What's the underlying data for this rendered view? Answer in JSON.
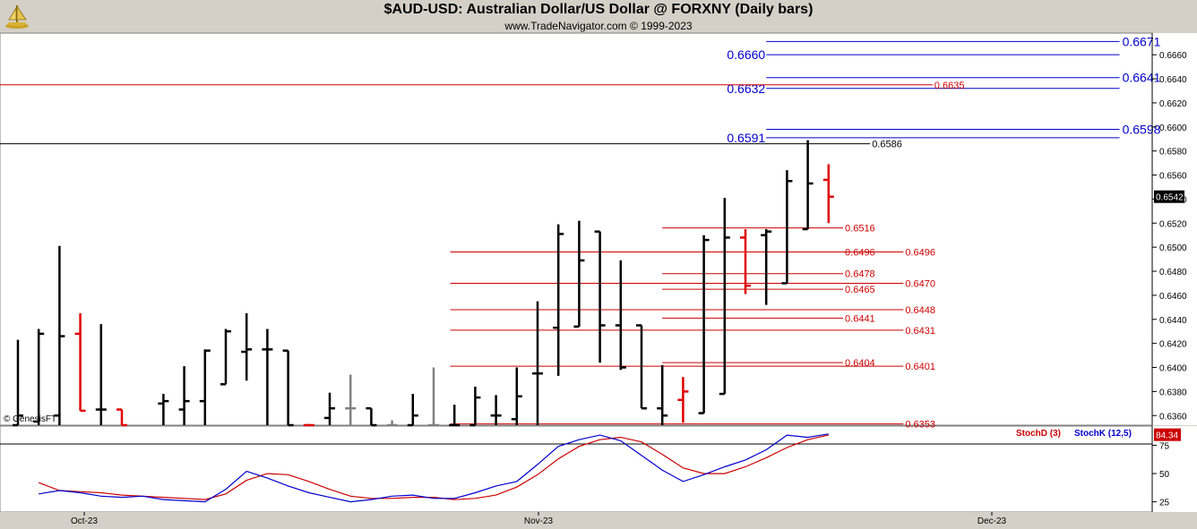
{
  "header": {
    "title": "$AUD-USD:  Australian Dollar/US Dollar @ FORXNY  (Daily bars)",
    "subtitle": "www.TradeNavigator.com © 1999-2023"
  },
  "footer": {
    "copyright": "© GenesisFT"
  },
  "colors": {
    "up_bar": "#000000",
    "down_bar": "#e00000",
    "gray_bar": "#808080",
    "blue_level": "#0000cc",
    "red_level": "#cc0000",
    "stochD": "#cc0000",
    "stochK": "#0000cc"
  },
  "chart_data": [
    {
      "type": "ohlc",
      "title": "$AUD-USD:  Australian Dollar/US Dollar @ FORXNY  (Daily bars)",
      "ylim": [
        0.6352,
        0.6678
      ],
      "y_ticks": [
        "0.6660",
        "0.6640",
        "0.6620",
        "0.6600",
        "0.6580",
        "0.6560",
        "0.6540",
        "0.6520",
        "0.6500",
        "0.6480",
        "0.6460",
        "0.6440",
        "0.6420",
        "0.6400",
        "0.6380",
        "0.6360"
      ],
      "x_labels": [
        "Oct-23",
        "Nov-23",
        "Dec-23"
      ],
      "last_price": "0.6542",
      "bars": [
        {
          "i": 0,
          "o": 0.6352,
          "h": 0.6423,
          "l": 0.6352,
          "c": 0.636,
          "k": "up"
        },
        {
          "i": 1,
          "o": 0.6355,
          "h": 0.6432,
          "l": 0.6352,
          "c": 0.6428,
          "k": "up"
        },
        {
          "i": 2,
          "o": 0.636,
          "h": 0.6501,
          "l": 0.6352,
          "c": 0.6426,
          "k": "up"
        },
        {
          "i": 3,
          "o": 0.6428,
          "h": 0.6445,
          "l": 0.6364,
          "c": 0.6364,
          "k": "down"
        },
        {
          "i": 4,
          "o": 0.6365,
          "h": 0.6436,
          "l": 0.6352,
          "c": 0.6365,
          "k": "up"
        },
        {
          "i": 5,
          "o": 0.6365,
          "h": 0.6365,
          "l": 0.6352,
          "c": 0.6352,
          "k": "down"
        },
        {
          "i": 7,
          "o": 0.637,
          "h": 0.6378,
          "l": 0.6352,
          "c": 0.6372,
          "k": "up"
        },
        {
          "i": 8,
          "o": 0.6365,
          "h": 0.6401,
          "l": 0.6352,
          "c": 0.6372,
          "k": "up"
        },
        {
          "i": 9,
          "o": 0.6372,
          "h": 0.6415,
          "l": 0.6352,
          "c": 0.6414,
          "k": "up"
        },
        {
          "i": 10,
          "o": 0.6386,
          "h": 0.6432,
          "l": 0.6386,
          "c": 0.643,
          "k": "up"
        },
        {
          "i": 11,
          "o": 0.6413,
          "h": 0.6445,
          "l": 0.6389,
          "c": 0.6415,
          "k": "up"
        },
        {
          "i": 12,
          "o": 0.6415,
          "h": 0.6432,
          "l": 0.6352,
          "c": 0.6415,
          "k": "up"
        },
        {
          "i": 13,
          "o": 0.6414,
          "h": 0.6414,
          "l": 0.6352,
          "c": 0.6352,
          "k": "up"
        },
        {
          "i": 14,
          "o": 0.6352,
          "h": 0.6353,
          "l": 0.6352,
          "c": 0.6352,
          "k": "down"
        },
        {
          "i": 15,
          "o": 0.6358,
          "h": 0.6379,
          "l": 0.6352,
          "c": 0.6366,
          "k": "up"
        },
        {
          "i": 16,
          "o": 0.6366,
          "h": 0.6394,
          "l": 0.6352,
          "c": 0.6366,
          "k": "gray"
        },
        {
          "i": 17,
          "o": 0.6366,
          "h": 0.6366,
          "l": 0.6352,
          "c": 0.6352,
          "k": "up"
        },
        {
          "i": 18,
          "o": 0.6352,
          "h": 0.6356,
          "l": 0.6352,
          "c": 0.6352,
          "k": "gray"
        },
        {
          "i": 19,
          "o": 0.6352,
          "h": 0.6378,
          "l": 0.6352,
          "c": 0.636,
          "k": "up"
        },
        {
          "i": 20,
          "o": 0.6352,
          "h": 0.64,
          "l": 0.6352,
          "c": 0.6352,
          "k": "gray"
        },
        {
          "i": 21,
          "o": 0.6352,
          "h": 0.6369,
          "l": 0.6352,
          "c": 0.6352,
          "k": "up"
        },
        {
          "i": 22,
          "o": 0.6352,
          "h": 0.6384,
          "l": 0.6352,
          "c": 0.6375,
          "k": "up"
        },
        {
          "i": 23,
          "o": 0.636,
          "h": 0.6377,
          "l": 0.6352,
          "c": 0.636,
          "k": "up"
        },
        {
          "i": 24,
          "o": 0.6357,
          "h": 0.64,
          "l": 0.6352,
          "c": 0.6376,
          "k": "up"
        },
        {
          "i": 25,
          "o": 0.6395,
          "h": 0.6455,
          "l": 0.6352,
          "c": 0.6395,
          "k": "up"
        },
        {
          "i": 26,
          "o": 0.6433,
          "h": 0.6519,
          "l": 0.6393,
          "c": 0.6511,
          "k": "up"
        },
        {
          "i": 27,
          "o": 0.6434,
          "h": 0.6522,
          "l": 0.6434,
          "c": 0.6489,
          "k": "up"
        },
        {
          "i": 28,
          "o": 0.6513,
          "h": 0.6513,
          "l": 0.6404,
          "c": 0.6435,
          "k": "up"
        },
        {
          "i": 29,
          "o": 0.6435,
          "h": 0.6489,
          "l": 0.6398,
          "c": 0.64,
          "k": "up"
        },
        {
          "i": 30,
          "o": 0.6435,
          "h": 0.6435,
          "l": 0.6366,
          "c": 0.6366,
          "k": "up"
        },
        {
          "i": 31,
          "o": 0.6366,
          "h": 0.6402,
          "l": 0.6352,
          "c": 0.636,
          "k": "up"
        },
        {
          "i": 32,
          "o": 0.6373,
          "h": 0.6392,
          "l": 0.6354,
          "c": 0.638,
          "k": "down"
        },
        {
          "i": 33,
          "o": 0.6362,
          "h": 0.651,
          "l": 0.6362,
          "c": 0.6506,
          "k": "up"
        },
        {
          "i": 34,
          "o": 0.6378,
          "h": 0.6541,
          "l": 0.6378,
          "c": 0.6508,
          "k": "up"
        },
        {
          "i": 35,
          "o": 0.6508,
          "h": 0.6515,
          "l": 0.6461,
          "c": 0.6468,
          "k": "down"
        },
        {
          "i": 36,
          "o": 0.651,
          "h": 0.6515,
          "l": 0.6452,
          "c": 0.6513,
          "k": "up"
        },
        {
          "i": 37,
          "o": 0.647,
          "h": 0.6564,
          "l": 0.647,
          "c": 0.6555,
          "k": "up"
        },
        {
          "i": 38,
          "o": 0.6515,
          "h": 0.6589,
          "l": 0.6515,
          "c": 0.6553,
          "k": "up"
        },
        {
          "i": 39,
          "o": 0.6556,
          "h": 0.6569,
          "l": 0.652,
          "c": 0.6542,
          "k": "down"
        }
      ],
      "levels": [
        {
          "value": 0.6671,
          "label": "0.6671",
          "color": "blue",
          "x0": 36,
          "x1": 53,
          "labelside": "right"
        },
        {
          "value": 0.666,
          "label": "0.6660",
          "color": "blue",
          "x0": 36,
          "x1": 53,
          "labelside": "left"
        },
        {
          "value": 0.6641,
          "label": "0.6641",
          "color": "blue",
          "x0": 36,
          "x1": 53,
          "labelside": "right"
        },
        {
          "value": 0.6632,
          "label": "0.6632",
          "color": "blue",
          "x0": 36,
          "x1": 53,
          "labelside": "left"
        },
        {
          "value": 0.6598,
          "label": "0.6598",
          "color": "blue",
          "x0": 36,
          "x1": 53,
          "labelside": "right"
        },
        {
          "value": 0.6591,
          "label": "0.6591",
          "color": "blue",
          "x0": 36,
          "x1": 53,
          "labelside": "left"
        },
        {
          "value": 0.6635,
          "label": "0.6635",
          "color": "red",
          "x0": -1,
          "x1": 44,
          "labelside": "end"
        },
        {
          "value": 0.6586,
          "label": "0.6586",
          "color": "black",
          "x0": -1,
          "x1": 41,
          "labelside": "end"
        },
        {
          "value": 0.6516,
          "label": "0.6516",
          "color": "red",
          "x0": 31,
          "x1": 39.7,
          "labelside": "end"
        },
        {
          "value": 0.6496,
          "label": "0.6496",
          "color": "red",
          "x0": 20.8,
          "x1": 39.7,
          "labelside": "end"
        },
        {
          "value": 0.6496,
          "label": "0.6496",
          "color": "red",
          "x0": 20.8,
          "x1": 42.6,
          "labelside": "end"
        },
        {
          "value": 0.6478,
          "label": "0.6478",
          "color": "red",
          "x0": 31,
          "x1": 39.7,
          "labelside": "end"
        },
        {
          "value": 0.647,
          "label": "0.6470",
          "color": "red",
          "x0": 20.8,
          "x1": 42.6,
          "labelside": "end"
        },
        {
          "value": 0.6465,
          "label": "0.6465",
          "color": "red",
          "x0": 31,
          "x1": 39.7,
          "labelside": "end"
        },
        {
          "value": 0.6448,
          "label": "0.6448",
          "color": "red",
          "x0": 20.8,
          "x1": 42.6,
          "labelside": "end"
        },
        {
          "value": 0.6441,
          "label": "0.6441",
          "color": "red",
          "x0": 31,
          "x1": 39.7,
          "labelside": "end"
        },
        {
          "value": 0.6431,
          "label": "0.6431",
          "color": "red",
          "x0": 20.8,
          "x1": 42.6,
          "labelside": "end"
        },
        {
          "value": 0.6404,
          "label": "0.6404",
          "color": "red",
          "x0": 31,
          "x1": 39.7,
          "labelside": "end"
        },
        {
          "value": 0.6401,
          "label": "0.6401",
          "color": "red",
          "x0": 20.8,
          "x1": 42.6,
          "labelside": "end"
        },
        {
          "value": 0.6353,
          "label": "0.6353",
          "color": "red",
          "x0": 20.8,
          "x1": 42.6,
          "labelside": "end"
        }
      ]
    },
    {
      "type": "line",
      "title": "",
      "ylim": [
        16,
        92
      ],
      "y_ticks": [
        "75",
        "50",
        "25"
      ],
      "last_value": "84.34",
      "series": [
        {
          "name": "StochD (3)",
          "color": "red",
          "values": [
            [
              1,
              42
            ],
            [
              2,
              35
            ],
            [
              3,
              34
            ],
            [
              4,
              33
            ],
            [
              5,
              31
            ],
            [
              6,
              30
            ],
            [
              7,
              29
            ],
            [
              8,
              28
            ],
            [
              9,
              27
            ],
            [
              10,
              32
            ],
            [
              11,
              44
            ],
            [
              12,
              50
            ],
            [
              13,
              49
            ],
            [
              14,
              43
            ],
            [
              15,
              36
            ],
            [
              16,
              30
            ],
            [
              17,
              28
            ],
            [
              18,
              28
            ],
            [
              19,
              29
            ],
            [
              20,
              29
            ],
            [
              21,
              27
            ],
            [
              22,
              28
            ],
            [
              23,
              31
            ],
            [
              24,
              38
            ],
            [
              25,
              49
            ],
            [
              26,
              63
            ],
            [
              27,
              74
            ],
            [
              28,
              80
            ],
            [
              29,
              82
            ],
            [
              30,
              78
            ],
            [
              31,
              67
            ],
            [
              32,
              55
            ],
            [
              33,
              50
            ],
            [
              34,
              50
            ],
            [
              35,
              56
            ],
            [
              36,
              64
            ],
            [
              37,
              73
            ],
            [
              38,
              80
            ],
            [
              39,
              84
            ]
          ]
        },
        {
          "name": "StochK (12,5)",
          "color": "blue",
          "values": [
            [
              1,
              32
            ],
            [
              2,
              35
            ],
            [
              3,
              33
            ],
            [
              4,
              30
            ],
            [
              5,
              29
            ],
            [
              6,
              30
            ],
            [
              7,
              27
            ],
            [
              8,
              26
            ],
            [
              9,
              25
            ],
            [
              10,
              36
            ],
            [
              11,
              52
            ],
            [
              12,
              46
            ],
            [
              13,
              39
            ],
            [
              14,
              33
            ],
            [
              15,
              29
            ],
            [
              16,
              25
            ],
            [
              17,
              27
            ],
            [
              18,
              30
            ],
            [
              19,
              31
            ],
            [
              20,
              28
            ],
            [
              21,
              28
            ],
            [
              22,
              33
            ],
            [
              23,
              39
            ],
            [
              24,
              43
            ],
            [
              25,
              58
            ],
            [
              26,
              74
            ],
            [
              27,
              80
            ],
            [
              28,
              84
            ],
            [
              29,
              79
            ],
            [
              30,
              66
            ],
            [
              31,
              53
            ],
            [
              32,
              43
            ],
            [
              33,
              49
            ],
            [
              34,
              56
            ],
            [
              35,
              62
            ],
            [
              36,
              71
            ],
            [
              37,
              84
            ],
            [
              38,
              82
            ],
            [
              39,
              85
            ]
          ]
        }
      ]
    }
  ]
}
